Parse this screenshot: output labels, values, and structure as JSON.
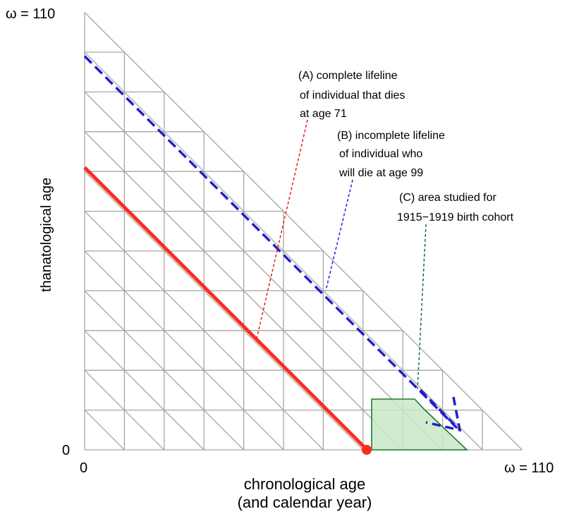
{
  "labels": {
    "y_top": "ω = 110",
    "y_zero": "0",
    "x_zero": "0",
    "x_right": "ω = 110",
    "y_axis_title": "thanatological age",
    "x_axis_title_line1": "chronological age",
    "x_axis_title_line2": "(and calendar year)"
  },
  "annotations": {
    "a_line1": "(A) complete lifeline",
    "a_line2": "of individual that dies",
    "a_line3": "at age 71",
    "b_line1": "(B) incomplete lifeline",
    "b_line2": "of individual who",
    "b_line3": "will die at age 99",
    "c_line1": "(C) area studied for",
    "c_line2": "1915−1919 birth cohort"
  },
  "colors": {
    "grid": "#a6a6a6",
    "lifeline_a": "#ff2a1f",
    "lifeline_b": "#1f1fcc",
    "pointer_a": "#e02020",
    "pointer_b": "#2020e0",
    "pointer_c": "#1f6b3a",
    "area_fill": "#c9e8c5",
    "area_stroke": "#1d7a2e"
  },
  "model": {
    "omega": 110,
    "grid_step": 10,
    "lifeline_a": {
      "total_lifespan": 71,
      "from_chronological": 0,
      "to_chronological": 71
    },
    "lifeline_b": {
      "total_lifespan": 99,
      "from_chronological": 0,
      "to_chronological": 94
    },
    "cohort_area": {
      "birth_years": "1915−1919"
    }
  }
}
